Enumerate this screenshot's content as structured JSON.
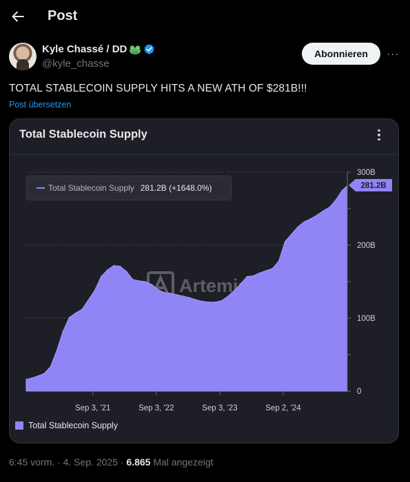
{
  "header": {
    "title": "Post"
  },
  "author": {
    "name": "Kyle Chassé / DD",
    "handle": "@kyle_chasse",
    "follow_label": "Abonnieren",
    "more_label": "···"
  },
  "post": {
    "text": "TOTAL STABLECOIN SUPPLY HITS A NEW ATH OF $281B!!!",
    "translate_label": "Post übersetzen"
  },
  "card": {
    "title": "Total Stablecoin Supply",
    "watermark": "Artemis",
    "tooltip": {
      "series": "Total Stablecoin Supply",
      "value": "281.2B (+1648.0%)"
    },
    "current_tag": "281.2B",
    "legend": "Total Stablecoin Supply"
  },
  "chart_data": {
    "type": "area",
    "title": "Total Stablecoin Supply",
    "x_ticks": [
      "Sep 3, '21",
      "Sep 3, '22",
      "Sep 3, '23",
      "Sep 2, '24"
    ],
    "y_ticks": [
      "0",
      "100B",
      "200B",
      "300B"
    ],
    "ylim": [
      0,
      300
    ],
    "unit": "B",
    "series": [
      {
        "name": "Total Stablecoin Supply",
        "color": "#8f85f7",
        "x": [
          2020.62,
          2020.75,
          2020.9,
          2021.0,
          2021.1,
          2021.2,
          2021.3,
          2021.4,
          2021.5,
          2021.6,
          2021.7,
          2021.8,
          2021.9,
          2022.0,
          2022.1,
          2022.2,
          2022.3,
          2022.4,
          2022.5,
          2022.6,
          2022.7,
          2022.8,
          2022.9,
          2023.0,
          2023.1,
          2023.2,
          2023.3,
          2023.4,
          2023.5,
          2023.6,
          2023.7,
          2023.8,
          2023.9,
          2024.0,
          2024.1,
          2024.2,
          2024.3,
          2024.4,
          2024.5,
          2024.6,
          2024.7,
          2024.8,
          2024.9,
          2025.0,
          2025.1,
          2025.2,
          2025.3,
          2025.4,
          2025.5,
          2025.6,
          2025.68
        ],
        "values": [
          16,
          19,
          24,
          33,
          55,
          82,
          101,
          107,
          112,
          125,
          138,
          157,
          166,
          172,
          171,
          164,
          153,
          151,
          150,
          146,
          139,
          135,
          134,
          132,
          130,
          128,
          125,
          123,
          122,
          122,
          124,
          130,
          138,
          147,
          157,
          158,
          162,
          165,
          168,
          178,
          205,
          215,
          225,
          232,
          236,
          241,
          247,
          252,
          262,
          275,
          281.2
        ]
      }
    ],
    "grid": true,
    "legend": "bottom-left"
  },
  "footer": {
    "time": "6:45 vorm. · 4. Sep. 2025 · ",
    "views": "6.865",
    "views_suffix": " Mal angezeigt"
  }
}
